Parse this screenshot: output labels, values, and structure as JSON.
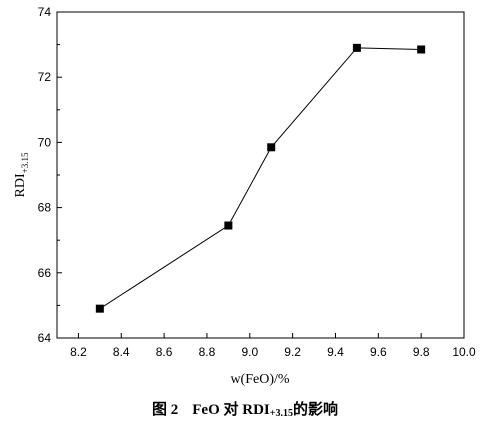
{
  "chart_data": {
    "type": "line",
    "xlabel": "w(FeO)/%",
    "ylabel_main": "RDI",
    "ylabel_sub": "+3.15",
    "xlim": [
      8.1,
      10.0
    ],
    "ylim": [
      64,
      74
    ],
    "xticks": [
      8.2,
      8.4,
      8.6,
      8.8,
      9.0,
      9.2,
      9.4,
      9.6,
      9.8,
      10.0
    ],
    "xtick_labels": [
      "8.2",
      "8.4",
      "8.6",
      "8.8",
      "9.0",
      "9.2",
      "9.4",
      "9.6",
      "9.8",
      "10.0"
    ],
    "yticks": [
      64,
      66,
      68,
      70,
      72,
      74
    ],
    "ytick_labels": [
      "64",
      "66",
      "68",
      "70",
      "72",
      "74"
    ],
    "series": [
      {
        "marker": "square",
        "color": "#000000",
        "x": [
          8.3,
          8.9,
          9.1,
          9.5,
          9.8
        ],
        "y": [
          64.9,
          67.45,
          69.85,
          72.9,
          72.85
        ]
      }
    ],
    "grid": false,
    "legend": "none"
  },
  "caption": {
    "label": "图 2",
    "text_before": "FeO 对 RDI",
    "subscript": "+3.15",
    "text_after": "的影响"
  }
}
